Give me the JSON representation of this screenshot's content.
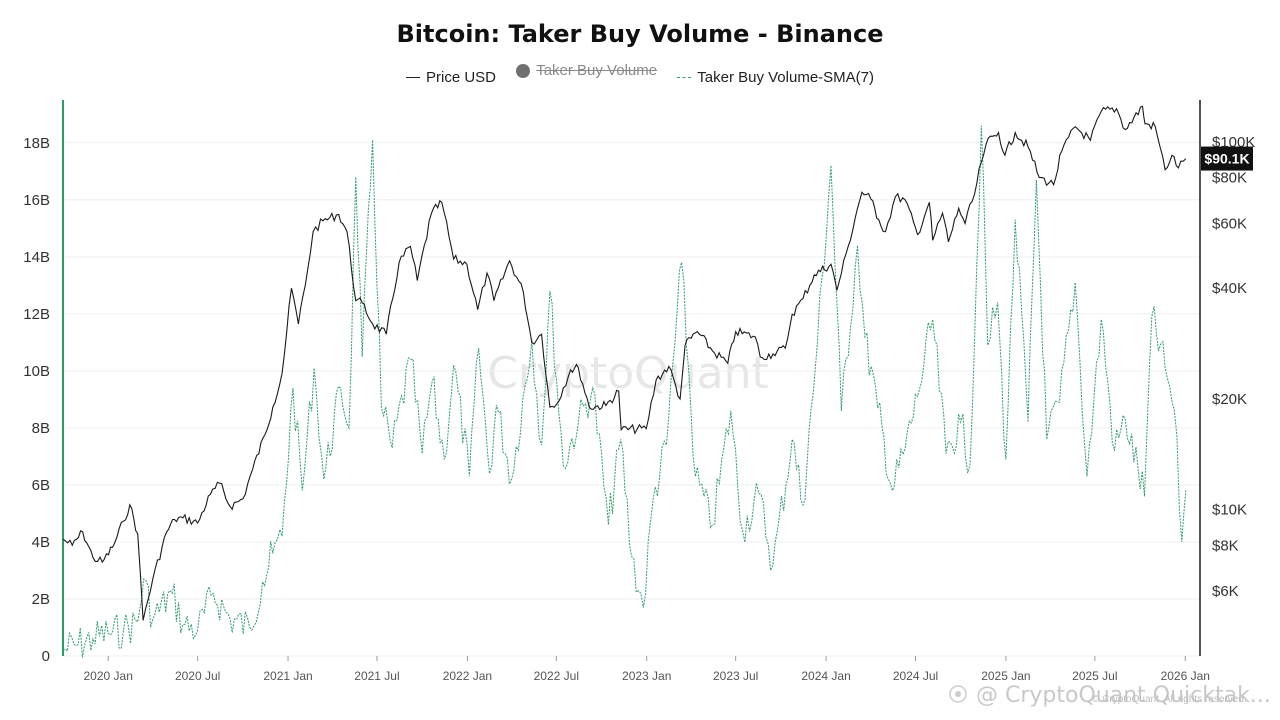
{
  "chart_data": {
    "type": "line",
    "title": "Bitcoin: Taker Buy Volume - Binance",
    "legend": [
      {
        "name": "Price USD",
        "style": "line",
        "color": "#1a1a1a",
        "hidden": false
      },
      {
        "name": "Taker Buy Volume",
        "style": "dot",
        "color": "#707070",
        "hidden": true
      },
      {
        "name": "Taker Buy Volume-SMA(7)",
        "style": "dashed",
        "color": "#2e9b6a",
        "hidden": false
      }
    ],
    "x_range": [
      "2019-10-01",
      "2026-01-31"
    ],
    "x_ticks": [
      {
        "date": "2020-01-01",
        "label": "2020 Jan"
      },
      {
        "date": "2020-07-01",
        "label": "2020 Jul"
      },
      {
        "date": "2021-01-01",
        "label": "2021 Jan"
      },
      {
        "date": "2021-07-01",
        "label": "2021 Jul"
      },
      {
        "date": "2022-01-01",
        "label": "2022 Jan"
      },
      {
        "date": "2022-07-01",
        "label": "2022 Jul"
      },
      {
        "date": "2023-01-01",
        "label": "2023 Jan"
      },
      {
        "date": "2023-07-01",
        "label": "2023 Jul"
      },
      {
        "date": "2024-01-01",
        "label": "2024 Jan"
      },
      {
        "date": "2024-07-01",
        "label": "2024 Jul"
      },
      {
        "date": "2025-01-01",
        "label": "2025 Jan"
      },
      {
        "date": "2025-07-01",
        "label": "2025 Jul"
      },
      {
        "date": "2026-01-01",
        "label": "2026 Jan"
      }
    ],
    "y_left": {
      "range": [
        0,
        19500000000
      ],
      "ticks": [
        {
          "value": 0,
          "label": "0"
        },
        {
          "value": 2000000000,
          "label": "2B"
        },
        {
          "value": 4000000000,
          "label": "4B"
        },
        {
          "value": 6000000000,
          "label": "6B"
        },
        {
          "value": 8000000000,
          "label": "8B"
        },
        {
          "value": 10000000000,
          "label": "10B"
        },
        {
          "value": 12000000000,
          "label": "12B"
        },
        {
          "value": 14000000000,
          "label": "14B"
        },
        {
          "value": 16000000000,
          "label": "16B"
        },
        {
          "value": 18000000000,
          "label": "18B"
        }
      ],
      "color": "#2e9b6a"
    },
    "y_right": {
      "scale": "log",
      "range": [
        4000,
        130000
      ],
      "ticks": [
        {
          "value": 6000,
          "label": "$6K"
        },
        {
          "value": 8000,
          "label": "$8K"
        },
        {
          "value": 10000,
          "label": "$10K"
        },
        {
          "value": 20000,
          "label": "$20K"
        },
        {
          "value": 40000,
          "label": "$40K"
        },
        {
          "value": 60000,
          "label": "$60K"
        },
        {
          "value": 80000,
          "label": "$80K"
        },
        {
          "value": 100000,
          "label": "$100K"
        }
      ],
      "color": "#1a1a1a"
    },
    "current_price": {
      "value": 90100,
      "label": "$90.1K"
    },
    "grid": "horizontal",
    "series": [
      {
        "name": "Price USD",
        "axis": "right",
        "points": [
          [
            "2019-10-01",
            8300
          ],
          [
            "2019-10-20",
            8000
          ],
          [
            "2019-11-10",
            8700
          ],
          [
            "2019-12-01",
            7400
          ],
          [
            "2019-12-20",
            7200
          ],
          [
            "2020-01-10",
            7900
          ],
          [
            "2020-02-01",
            9300
          ],
          [
            "2020-02-14",
            10300
          ],
          [
            "2020-03-01",
            8600
          ],
          [
            "2020-03-12",
            5000
          ],
          [
            "2020-04-01",
            6500
          ],
          [
            "2020-04-29",
            8700
          ],
          [
            "2020-05-15",
            9400
          ],
          [
            "2020-06-01",
            9500
          ],
          [
            "2020-07-01",
            9200
          ],
          [
            "2020-07-27",
            11000
          ],
          [
            "2020-08-15",
            11800
          ],
          [
            "2020-09-05",
            10200
          ],
          [
            "2020-10-01",
            10700
          ],
          [
            "2020-10-21",
            12900
          ],
          [
            "2020-11-15",
            16000
          ],
          [
            "2020-12-01",
            19000
          ],
          [
            "2020-12-20",
            23500
          ],
          [
            "2021-01-08",
            40000
          ],
          [
            "2021-01-22",
            32000
          ],
          [
            "2021-02-10",
            45000
          ],
          [
            "2021-02-21",
            57000
          ],
          [
            "2021-03-13",
            61000
          ],
          [
            "2021-04-14",
            63500
          ],
          [
            "2021-05-01",
            57000
          ],
          [
            "2021-05-19",
            37000
          ],
          [
            "2021-06-01",
            36500
          ],
          [
            "2021-06-22",
            32000
          ],
          [
            "2021-07-20",
            30000
          ],
          [
            "2021-08-15",
            47000
          ],
          [
            "2021-09-07",
            52000
          ],
          [
            "2021-09-21",
            42000
          ],
          [
            "2021-10-20",
            64000
          ],
          [
            "2021-11-10",
            68500
          ],
          [
            "2021-12-04",
            48000
          ],
          [
            "2021-12-31",
            46500
          ],
          [
            "2022-01-22",
            35000
          ],
          [
            "2022-02-10",
            44000
          ],
          [
            "2022-02-24",
            37000
          ],
          [
            "2022-03-28",
            47500
          ],
          [
            "2022-04-25",
            39000
          ],
          [
            "2022-05-12",
            28500
          ],
          [
            "2022-06-01",
            30000
          ],
          [
            "2022-06-18",
            19000
          ],
          [
            "2022-07-01",
            19300
          ],
          [
            "2022-07-30",
            24000
          ],
          [
            "2022-08-15",
            24300
          ],
          [
            "2022-09-06",
            19000
          ],
          [
            "2022-10-10",
            19200
          ],
          [
            "2022-11-05",
            21000
          ],
          [
            "2022-11-10",
            16500
          ],
          [
            "2022-12-31",
            16600
          ],
          [
            "2023-01-20",
            22500
          ],
          [
            "2023-02-15",
            24500
          ],
          [
            "2023-03-10",
            20000
          ],
          [
            "2023-03-20",
            28000
          ],
          [
            "2023-04-14",
            30500
          ],
          [
            "2023-05-15",
            27000
          ],
          [
            "2023-06-15",
            25000
          ],
          [
            "2023-07-01",
            30500
          ],
          [
            "2023-08-10",
            29500
          ],
          [
            "2023-08-20",
            26000
          ],
          [
            "2023-09-15",
            26500
          ],
          [
            "2023-10-10",
            27500
          ],
          [
            "2023-10-24",
            34000
          ],
          [
            "2023-11-15",
            37500
          ],
          [
            "2023-12-08",
            43500
          ],
          [
            "2024-01-11",
            46500
          ],
          [
            "2024-01-23",
            39500
          ],
          [
            "2024-02-15",
            52000
          ],
          [
            "2024-03-05",
            66000
          ],
          [
            "2024-03-14",
            73000
          ],
          [
            "2024-04-01",
            70000
          ],
          [
            "2024-04-17",
            61500
          ],
          [
            "2024-05-01",
            57000
          ],
          [
            "2024-05-21",
            71000
          ],
          [
            "2024-06-10",
            69500
          ],
          [
            "2024-07-05",
            56000
          ],
          [
            "2024-07-29",
            68500
          ],
          [
            "2024-08-05",
            54000
          ],
          [
            "2024-08-25",
            64000
          ],
          [
            "2024-09-06",
            53500
          ],
          [
            "2024-09-27",
            66000
          ],
          [
            "2024-10-10",
            60000
          ],
          [
            "2024-10-29",
            72000
          ],
          [
            "2024-11-12",
            88000
          ],
          [
            "2024-11-22",
            99000
          ],
          [
            "2024-12-17",
            106000
          ],
          [
            "2024-12-30",
            92000
          ],
          [
            "2025-01-20",
            106000
          ],
          [
            "2025-02-15",
            97000
          ],
          [
            "2025-03-10",
            80000
          ],
          [
            "2025-04-08",
            76500
          ],
          [
            "2025-04-25",
            94500
          ],
          [
            "2025-05-22",
            110000
          ],
          [
            "2025-06-22",
            101000
          ],
          [
            "2025-07-14",
            121000
          ],
          [
            "2025-08-14",
            123000
          ],
          [
            "2025-09-01",
            108000
          ],
          [
            "2025-10-06",
            125000
          ],
          [
            "2025-10-11",
            112000
          ],
          [
            "2025-11-01",
            110000
          ],
          [
            "2025-11-21",
            84000
          ],
          [
            "2025-12-05",
            92000
          ],
          [
            "2025-12-18",
            85000
          ],
          [
            "2026-01-02",
            90100
          ]
        ]
      },
      {
        "name": "Taker Buy Volume-SMA(7)",
        "axis": "left",
        "points": [
          [
            "2019-10-01",
            200000000
          ],
          [
            "2019-11-01",
            400000000
          ],
          [
            "2019-12-01",
            600000000
          ],
          [
            "2020-01-01",
            800000000
          ],
          [
            "2020-02-01",
            900000000
          ],
          [
            "2020-03-01",
            1200000000
          ],
          [
            "2020-03-13",
            2700000000
          ],
          [
            "2020-04-01",
            1300000000
          ],
          [
            "2020-05-10",
            2200000000
          ],
          [
            "2020-06-01",
            1100000000
          ],
          [
            "2020-07-01",
            900000000
          ],
          [
            "2020-08-02",
            2200000000
          ],
          [
            "2020-09-05",
            1300000000
          ],
          [
            "2020-10-15",
            1000000000
          ],
          [
            "2020-11-10",
            2600000000
          ],
          [
            "2020-12-01",
            3600000000
          ],
          [
            "2020-12-20",
            4200000000
          ],
          [
            "2021-01-11",
            9400000000
          ],
          [
            "2021-01-30",
            5800000000
          ],
          [
            "2021-02-23",
            10100000000
          ],
          [
            "2021-03-15",
            6200000000
          ],
          [
            "2021-04-18",
            9400000000
          ],
          [
            "2021-05-05",
            8000000000
          ],
          [
            "2021-05-19",
            16800000000
          ],
          [
            "2021-06-01",
            10500000000
          ],
          [
            "2021-06-22",
            18100000000
          ],
          [
            "2021-07-10",
            8700000000
          ],
          [
            "2021-08-01",
            7300000000
          ],
          [
            "2021-09-08",
            10400000000
          ],
          [
            "2021-10-01",
            7100000000
          ],
          [
            "2021-10-21",
            9600000000
          ],
          [
            "2021-11-15",
            6900000000
          ],
          [
            "2021-12-04",
            10200000000
          ],
          [
            "2022-01-05",
            6300000000
          ],
          [
            "2022-01-24",
            10800000000
          ],
          [
            "2022-02-15",
            6400000000
          ],
          [
            "2022-03-01",
            8800000000
          ],
          [
            "2022-04-01",
            6200000000
          ],
          [
            "2022-05-12",
            11100000000
          ],
          [
            "2022-06-01",
            7400000000
          ],
          [
            "2022-06-18",
            12800000000
          ],
          [
            "2022-07-15",
            6700000000
          ],
          [
            "2022-08-15",
            8200000000
          ],
          [
            "2022-09-13",
            9400000000
          ],
          [
            "2022-10-15",
            4600000000
          ],
          [
            "2022-11-09",
            7600000000
          ],
          [
            "2022-12-01",
            3500000000
          ],
          [
            "2022-12-25",
            1700000000
          ],
          [
            "2023-01-14",
            5500000000
          ],
          [
            "2023-02-10",
            7400000000
          ],
          [
            "2023-03-13",
            13800000000
          ],
          [
            "2023-04-10",
            6300000000
          ],
          [
            "2023-05-15",
            4600000000
          ],
          [
            "2023-06-21",
            8600000000
          ],
          [
            "2023-07-15",
            4400000000
          ],
          [
            "2023-08-17",
            5700000000
          ],
          [
            "2023-09-15",
            3200000000
          ],
          [
            "2023-10-24",
            7600000000
          ],
          [
            "2023-11-15",
            5300000000
          ],
          [
            "2023-12-10",
            10100000000
          ],
          [
            "2024-01-11",
            17200000000
          ],
          [
            "2024-02-01",
            8600000000
          ],
          [
            "2024-03-05",
            14400000000
          ],
          [
            "2024-03-20",
            11200000000
          ],
          [
            "2024-04-15",
            8700000000
          ],
          [
            "2024-05-15",
            5800000000
          ],
          [
            "2024-06-10",
            7300000000
          ],
          [
            "2024-07-05",
            9100000000
          ],
          [
            "2024-08-05",
            11800000000
          ],
          [
            "2024-09-01",
            7100000000
          ],
          [
            "2024-10-01",
            8200000000
          ],
          [
            "2024-10-20",
            6700000000
          ],
          [
            "2024-11-12",
            18600000000
          ],
          [
            "2024-11-25",
            10900000000
          ],
          [
            "2024-12-15",
            12400000000
          ],
          [
            "2025-01-01",
            6900000000
          ],
          [
            "2025-01-20",
            15300000000
          ],
          [
            "2025-02-15",
            8200000000
          ],
          [
            "2025-03-04",
            16700000000
          ],
          [
            "2025-03-25",
            7600000000
          ],
          [
            "2025-04-20",
            8900000000
          ],
          [
            "2025-05-22",
            13100000000
          ],
          [
            "2025-06-15",
            6300000000
          ],
          [
            "2025-07-14",
            11800000000
          ],
          [
            "2025-08-10",
            7200000000
          ],
          [
            "2025-09-01",
            8300000000
          ],
          [
            "2025-10-10",
            5600000000
          ],
          [
            "2025-10-25",
            11900000000
          ],
          [
            "2025-11-21",
            10100000000
          ],
          [
            "2025-12-10",
            8600000000
          ],
          [
            "2025-12-25",
            4000000000
          ],
          [
            "2026-01-02",
            5800000000
          ]
        ]
      }
    ]
  },
  "watermark": "CryptoQuant",
  "footer": {
    "source": "@ CryptoQuant Quicktak...",
    "copyright": "© CryptoQuant. All rights reserved."
  }
}
